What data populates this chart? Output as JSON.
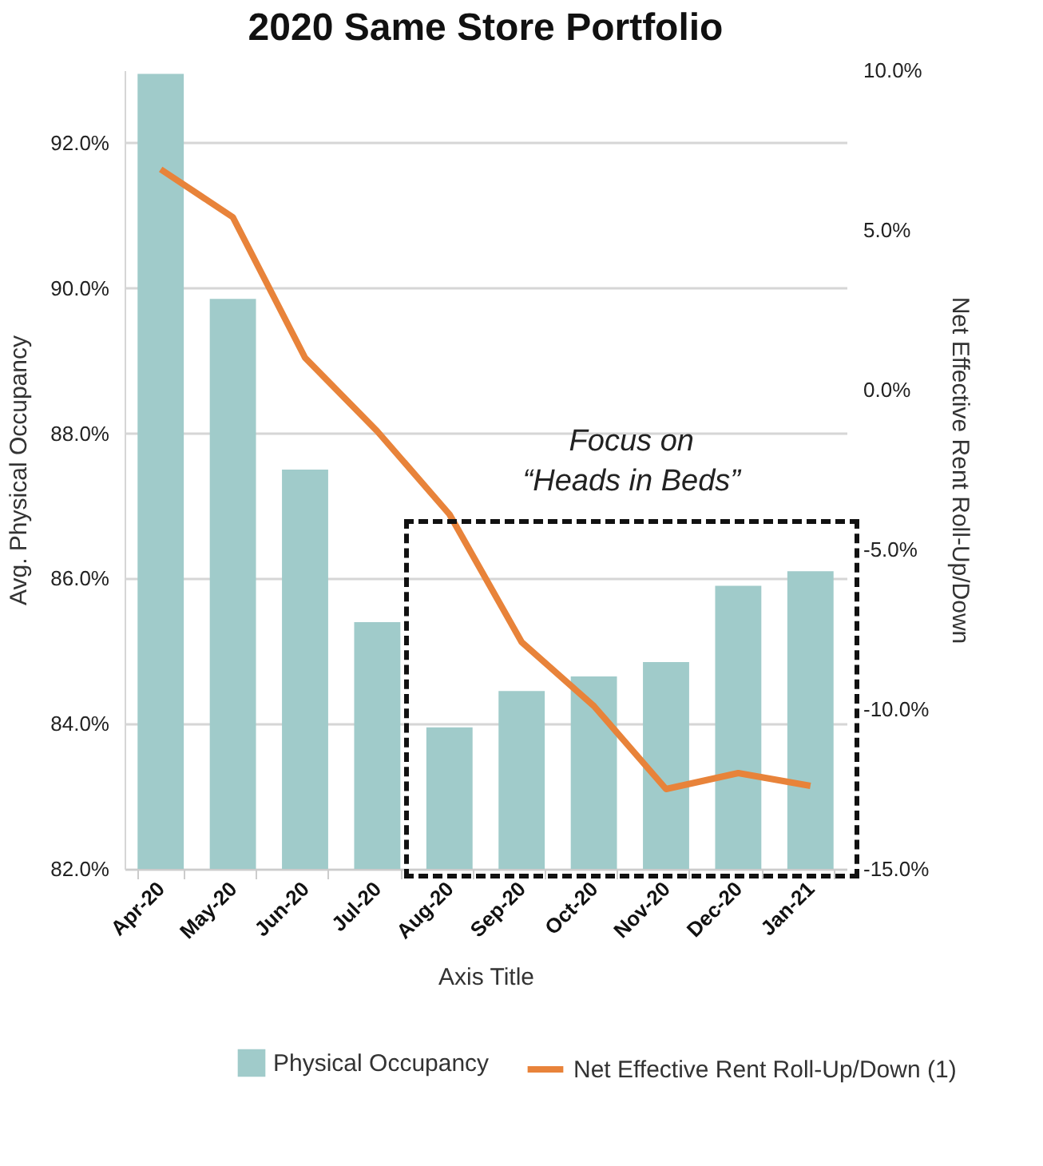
{
  "chart_data": {
    "type": "bar",
    "title": "2020 Same Store Portfolio",
    "xlabel": "Axis Title",
    "ylabel": "Avg. Physical Occupancy",
    "y2label": "Net Effective Rent Roll-Up/Down",
    "categories": [
      "Apr-20",
      "May-20",
      "Jun-20",
      "Jul-20",
      "Aug-20",
      "Sep-20",
      "Oct-20",
      "Nov-20",
      "Dec-20",
      "Jan-21"
    ],
    "series": [
      {
        "name": "Physical Occupancy",
        "color": "#a0cbca",
        "values": [
          92.95,
          89.85,
          87.5,
          85.4,
          83.95,
          84.45,
          84.65,
          84.85,
          85.9,
          86.1
        ]
      },
      {
        "name": "Net Effective Rent Roll-Up/Down (1)",
        "type": "line",
        "axis": "y2",
        "color": "#e8833a",
        "values": [
          6.9,
          5.4,
          1.0,
          -1.3,
          -3.9,
          -7.9,
          -9.9,
          -12.5,
          -12.0,
          -12.4
        ]
      }
    ],
    "ylim": [
      82,
      93
    ],
    "yticks": [
      {
        "value": 82,
        "label": "82.0%"
      },
      {
        "value": 84,
        "label": "84.0%"
      },
      {
        "value": 86,
        "label": "86.0%"
      },
      {
        "value": 88,
        "label": "88.0%"
      },
      {
        "value": 90,
        "label": "90.0%"
      },
      {
        "value": 92,
        "label": "92.0%"
      }
    ],
    "y2lim": [
      -15,
      10
    ],
    "y2ticks": [
      {
        "value": -15,
        "label": "-15.0%"
      },
      {
        "value": -10,
        "label": "-10.0%"
      },
      {
        "value": -5,
        "label": "-5.0%"
      },
      {
        "value": 0,
        "label": "0.0%"
      },
      {
        "value": 5,
        "label": "5.0%"
      },
      {
        "value": 10,
        "label": "10.0%"
      }
    ],
    "annotations": [
      "Focus on\n“Heads in Beds”"
    ],
    "grid": "y",
    "legend": "bottom",
    "line_style": "solid",
    "marker": "none"
  }
}
